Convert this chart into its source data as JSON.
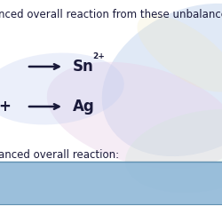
{
  "title_text": "nced overall reaction from these unbalance",
  "reaction1_arrow": "→",
  "reaction1_element": "Sn",
  "reaction1_charge": "2+",
  "reaction2_prefix": "+",
  "reaction2_arrow": "→",
  "reaction2_element": "Ag",
  "footer_text": "anced overall reaction:",
  "bg_base": "#dcd5e5",
  "swirl_colors": [
    "#c8d8f0",
    "#e8d0e8",
    "#d0e8d8",
    "#f0e8c0",
    "#c0ccf0"
  ],
  "blue_bar_color": "#90b8d8",
  "blue_bar_line_color": "#6090b0",
  "text_color": "#1a1a3a",
  "title_fontsize": 8.5,
  "reaction_fontsize": 12,
  "footer_fontsize": 8.5,
  "fig_width": 2.5,
  "fig_height": 2.5,
  "dpi": 100
}
